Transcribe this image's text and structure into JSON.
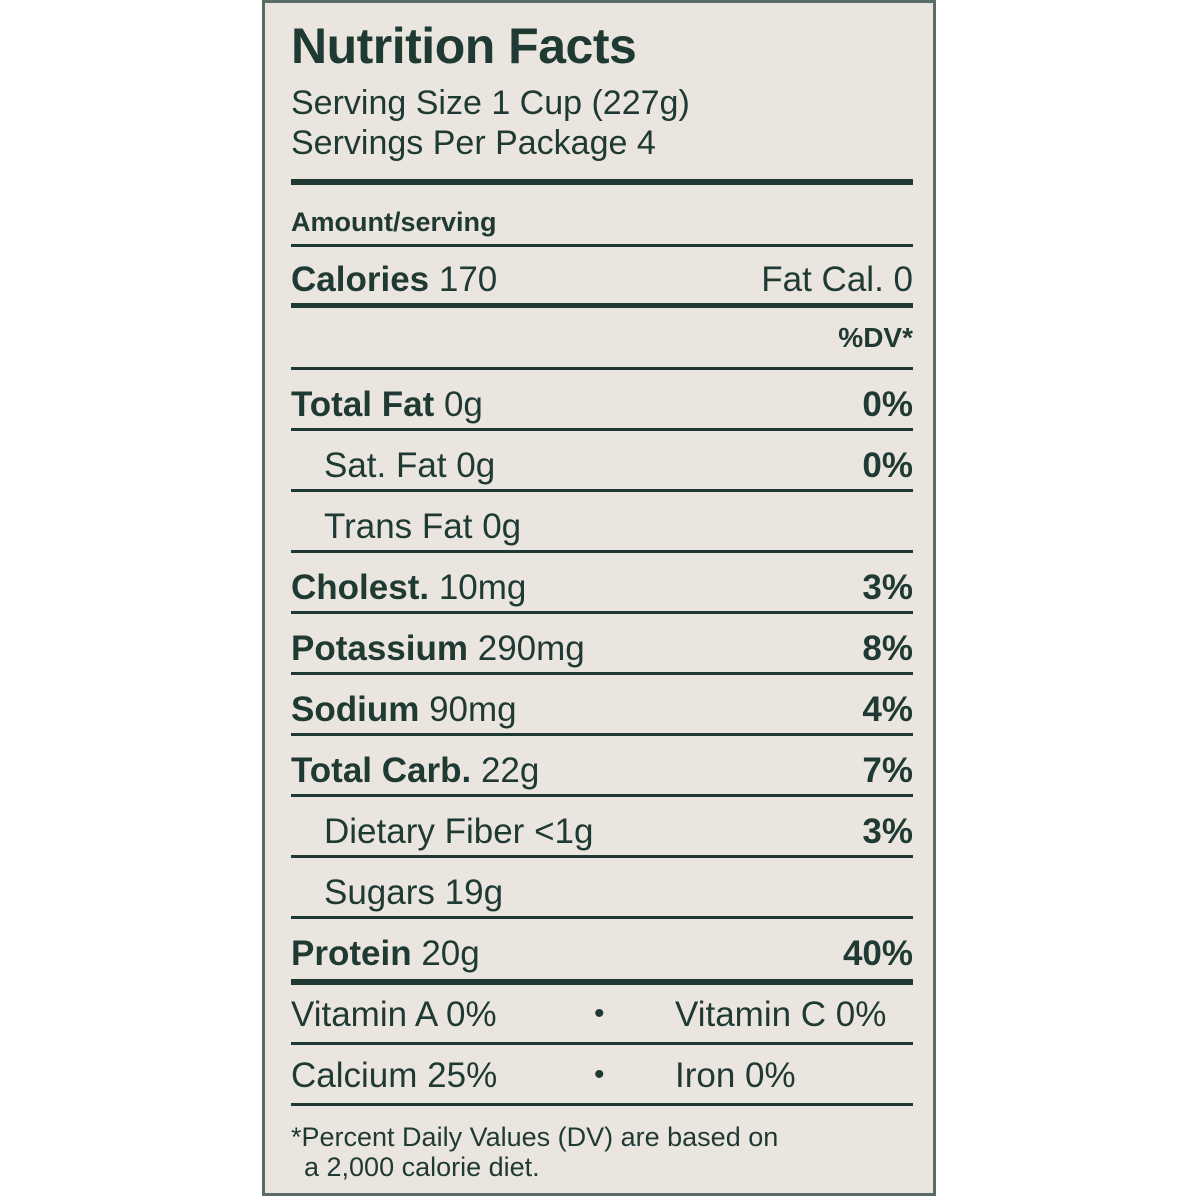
{
  "title": "Nutrition Facts",
  "serving_size": "Serving Size 1 Cup (227g)",
  "servings_per_package": "Servings Per Package 4",
  "amount_per_serving": "Amount/serving",
  "calories": {
    "label": "Calories",
    "value": "170",
    "fat_cal": "Fat Cal. 0"
  },
  "dv_header": "%DV*",
  "nutrients": [
    {
      "label": "Total Fat",
      "amount": "0g",
      "dv": "0%",
      "bold": true
    },
    {
      "label": "Sat. Fat",
      "amount": "0g",
      "dv": "0%",
      "bold": false
    },
    {
      "label": "Trans Fat",
      "amount": "0g",
      "dv": "",
      "bold": false
    },
    {
      "label": "Cholest.",
      "amount": "10mg",
      "dv": "3%",
      "bold": true
    },
    {
      "label": "Potassium",
      "amount": "290mg",
      "dv": "8%",
      "bold": true
    },
    {
      "label": "Sodium",
      "amount": "90mg",
      "dv": "4%",
      "bold": true
    },
    {
      "label": "Total Carb.",
      "amount": "22g",
      "dv": "7%",
      "bold": true
    },
    {
      "label": "Dietary Fiber",
      "amount": "<1g",
      "dv": "3%",
      "bold": false
    },
    {
      "label": "Sugars",
      "amount": "19g",
      "dv": "",
      "bold": false
    },
    {
      "label": "Protein",
      "amount": "20g",
      "dv": "40%",
      "bold": true
    }
  ],
  "vitamins": {
    "row1": {
      "left": "Vitamin A  0%",
      "right": "Vitamin C 0%"
    },
    "row2": {
      "left": "Calcium 25%",
      "right": "Iron 0%"
    },
    "separator": "•"
  },
  "footnote": {
    "line1": "*Percent Daily Values (DV) are based on",
    "line2": "a 2,000 calorie diet."
  }
}
